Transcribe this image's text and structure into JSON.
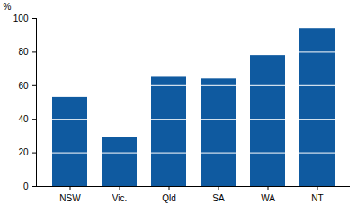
{
  "chart_data": {
    "type": "bar",
    "y_label": "%",
    "categories": [
      "NSW",
      "Vic.",
      "Qld",
      "SA",
      "WA",
      "NT"
    ],
    "values": [
      53,
      29,
      65,
      64,
      78,
      94
    ],
    "color": "#0f5aa0",
    "ylim": [
      0,
      100
    ],
    "yticks": [
      0,
      20,
      40,
      60,
      80,
      100
    ],
    "grid": true
  }
}
